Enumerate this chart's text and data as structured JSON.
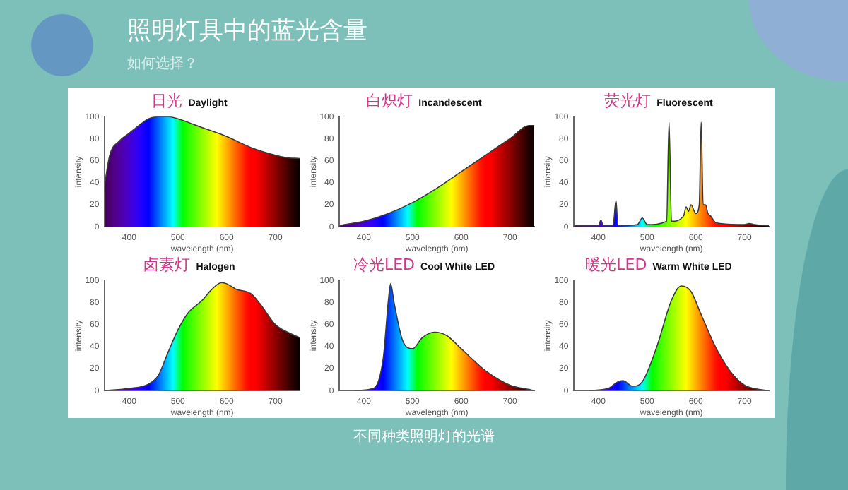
{
  "chart_data": [
    {
      "type": "other",
      "title": "照明灯具中的蓝光含量",
      "subtitle": "如何选择？",
      "annotations": [
        "不同种类照明灯的光谱"
      ]
    },
    {
      "type": "area",
      "title": "Daylight",
      "annotations": [
        "日光"
      ],
      "xlabel": "wavelength (nm)",
      "ylabel": "intensity",
      "x": [
        350,
        360,
        380,
        400,
        420,
        440,
        460,
        480,
        500,
        550,
        600,
        650,
        700,
        720,
        750
      ],
      "series": [
        {
          "color": "#3a3a3a",
          "values": [
            40,
            65,
            78,
            85,
            92,
            98,
            100,
            100,
            98,
            90,
            82,
            72,
            65,
            63,
            62
          ]
        }
      ],
      "xlim": [
        350,
        750
      ],
      "xticks": [
        400,
        500,
        600,
        700
      ],
      "ylim": [
        0,
        100
      ],
      "yticks": [
        0,
        20,
        40,
        60,
        80,
        100
      ]
    },
    {
      "type": "area",
      "title": "Incandescent",
      "annotations": [
        "白炽灯"
      ],
      "xlabel": "wavelength (nm)",
      "ylabel": "intensity",
      "x": [
        350,
        360,
        400,
        450,
        500,
        550,
        600,
        650,
        700,
        740,
        750
      ],
      "series": [
        {
          "color": "#3a3a3a",
          "values": [
            1,
            2,
            5,
            12,
            22,
            35,
            50,
            65,
            80,
            92,
            92
          ]
        }
      ],
      "xlim": [
        350,
        750
      ],
      "xticks": [
        400,
        500,
        600,
        700
      ],
      "ylim": [
        0,
        100
      ],
      "yticks": [
        0,
        20,
        40,
        60,
        80,
        100
      ]
    },
    {
      "type": "area",
      "title": "Fluorescent",
      "annotations": [
        "荧光灯"
      ],
      "xlabel": "wavelength (nm)",
      "ylabel": "intensity",
      "x": [
        350,
        400,
        405,
        410,
        430,
        436,
        440,
        480,
        490,
        500,
        540,
        545,
        550,
        575,
        580,
        585,
        590,
        600,
        607,
        611,
        615,
        620,
        625,
        630,
        640,
        650,
        700,
        710,
        720,
        750
      ],
      "series": [
        {
          "color": "#3a3a3a",
          "values": [
            1,
            1,
            6,
            1,
            1,
            24,
            1,
            2,
            8,
            2,
            5,
            95,
            5,
            10,
            18,
            14,
            20,
            12,
            20,
            95,
            20,
            20,
            12,
            10,
            4,
            3,
            2,
            3,
            2,
            1
          ]
        }
      ],
      "xlim": [
        350,
        750
      ],
      "xticks": [
        400,
        500,
        600,
        700
      ],
      "ylim": [
        0,
        100
      ],
      "yticks": [
        0,
        20,
        40,
        60,
        80,
        100
      ]
    },
    {
      "type": "area",
      "title": "Halogen",
      "annotations": [
        "卤素灯"
      ],
      "xlabel": "wavelength (nm)",
      "ylabel": "intensity",
      "x": [
        350,
        400,
        440,
        460,
        480,
        500,
        520,
        550,
        570,
        590,
        600,
        620,
        650,
        670,
        700,
        730,
        750
      ],
      "series": [
        {
          "color": "#3a3a3a",
          "values": [
            0,
            2,
            6,
            14,
            35,
            55,
            70,
            82,
            92,
            98,
            97,
            92,
            88,
            78,
            60,
            52,
            48
          ]
        }
      ],
      "xlim": [
        350,
        750
      ],
      "xticks": [
        400,
        500,
        600,
        700
      ],
      "ylim": [
        0,
        100
      ],
      "yticks": [
        0,
        20,
        40,
        60,
        80,
        100
      ]
    },
    {
      "type": "area",
      "title": "Cool White LED",
      "annotations": [
        "冷光LED"
      ],
      "xlabel": "wavelength (nm)",
      "ylabel": "intensity",
      "x": [
        380,
        420,
        440,
        450,
        455,
        462,
        480,
        500,
        520,
        545,
        570,
        600,
        650,
        700,
        740,
        750
      ],
      "series": [
        {
          "color": "#3a3a3a",
          "values": [
            0,
            2,
            30,
            80,
            97,
            80,
            45,
            38,
            48,
            53,
            50,
            38,
            18,
            5,
            1,
            0
          ]
        }
      ],
      "xlim": [
        350,
        750
      ],
      "xticks": [
        400,
        500,
        600,
        700
      ],
      "ylim": [
        0,
        100
      ],
      "yticks": [
        0,
        20,
        40,
        60,
        80,
        100
      ]
    },
    {
      "type": "area",
      "title": "Warm White LED",
      "annotations": [
        "暖光LED"
      ],
      "xlabel": "wavelength (nm)",
      "ylabel": "intensity",
      "x": [
        380,
        420,
        440,
        450,
        470,
        490,
        520,
        550,
        570,
        590,
        610,
        640,
        670,
        700,
        730,
        750
      ],
      "series": [
        {
          "color": "#3a3a3a",
          "values": [
            0,
            2,
            8,
            9,
            4,
            8,
            40,
            82,
            95,
            90,
            70,
            40,
            18,
            5,
            1,
            0
          ]
        }
      ],
      "xlim": [
        350,
        750
      ],
      "xticks": [
        400,
        500,
        600,
        700
      ],
      "ylim": [
        0,
        100
      ],
      "yticks": [
        0,
        20,
        40,
        60,
        80,
        100
      ]
    }
  ]
}
